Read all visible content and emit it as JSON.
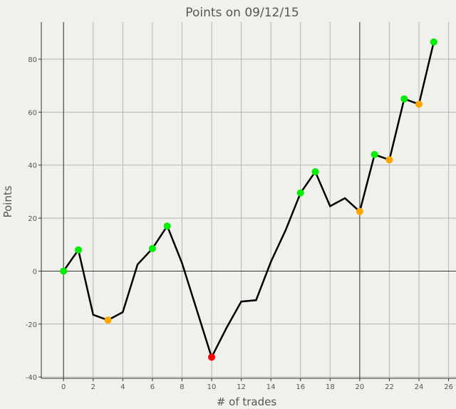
{
  "chart_data": {
    "type": "line",
    "title": "Points on 09/12/15",
    "xlabel": "# of trades",
    "ylabel": "Points",
    "xlim": [
      -1.5,
      26.5
    ],
    "ylim": [
      -40.5,
      94
    ],
    "xticks": [
      0,
      2,
      4,
      6,
      8,
      10,
      12,
      14,
      16,
      18,
      20,
      22,
      24,
      26
    ],
    "yticks": [
      -40,
      -20,
      0,
      20,
      40,
      60,
      80
    ],
    "grid": true,
    "legend": "none",
    "x": [
      0,
      1,
      2,
      3,
      4,
      5,
      6,
      7,
      8,
      10,
      11,
      12,
      13,
      14,
      15,
      16,
      17,
      18,
      19,
      20,
      21,
      22,
      23,
      24,
      25
    ],
    "y": [
      0,
      8,
      -16.5,
      -18.5,
      -15.5,
      2.5,
      8.5,
      17,
      3,
      -32.5,
      -21.5,
      -11.5,
      -11,
      3.5,
      15.5,
      29.5,
      37.5,
      24.5,
      27.5,
      22.5,
      44,
      42,
      65,
      63,
      86.5
    ],
    "markers": [
      {
        "x": 0,
        "y": 0,
        "color": "green"
      },
      {
        "x": 1,
        "y": 8,
        "color": "green"
      },
      {
        "x": 3,
        "y": -18.5,
        "color": "orange"
      },
      {
        "x": 6,
        "y": 8.5,
        "color": "green"
      },
      {
        "x": 7,
        "y": 17,
        "color": "green"
      },
      {
        "x": 10,
        "y": -32.5,
        "color": "red"
      },
      {
        "x": 16,
        "y": 29.5,
        "color": "green"
      },
      {
        "x": 17,
        "y": 37.5,
        "color": "green"
      },
      {
        "x": 20,
        "y": 22.5,
        "color": "orange"
      },
      {
        "x": 21,
        "y": 44,
        "color": "green"
      },
      {
        "x": 22,
        "y": 42,
        "color": "orange"
      },
      {
        "x": 23,
        "y": 65,
        "color": "green"
      },
      {
        "x": 24,
        "y": 63,
        "color": "orange"
      },
      {
        "x": 25,
        "y": 86.5,
        "color": "green"
      }
    ],
    "reference_lines": {
      "vertical": [
        0,
        20
      ],
      "horizontal": [
        0
      ]
    }
  },
  "colors": {
    "background": "#f1f1ec",
    "grid": "#b5b5b5",
    "axis": "#333333",
    "line": "#000000",
    "green": "#00ee00",
    "orange": "#ffa500",
    "red": "#ff0000",
    "text": "#555555"
  }
}
